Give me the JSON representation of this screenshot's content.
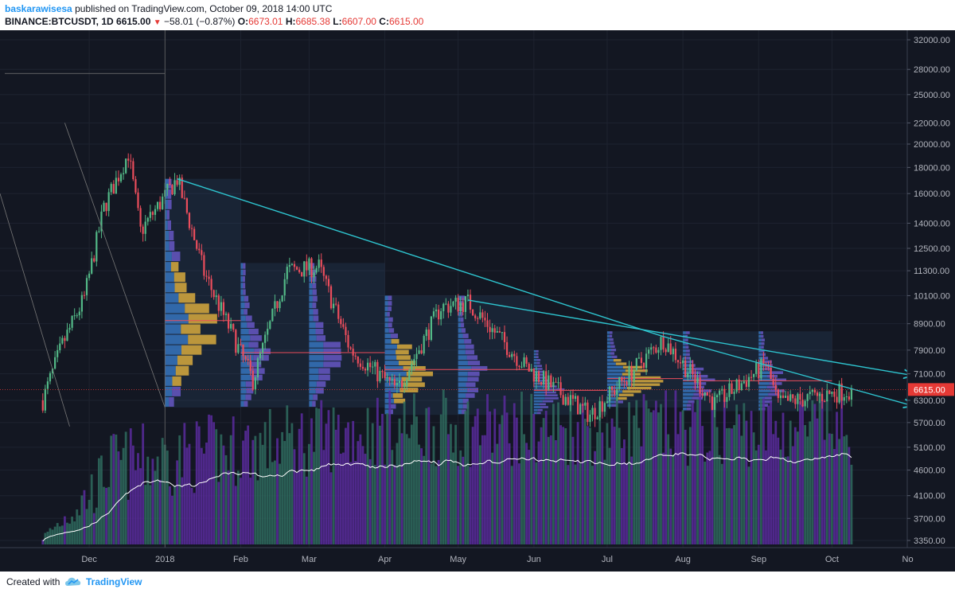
{
  "header": {
    "author": "baskarawisesa",
    "published_text": " published on TradingView.com, October 09, 2018 14:00 UTC",
    "symbol": "BINANCE:BTCUSDT, 1D",
    "last": "6615.00",
    "change": "−58.01 (−0.87%)",
    "o_label": "O:",
    "o_val": "6673.01",
    "h_label": "H:",
    "h_val": "6685.38",
    "l_label": "L:",
    "l_val": "6607.00",
    "c_label": "C:",
    "c_val": "6615.00"
  },
  "footer": {
    "created_with": "Created with",
    "brand": "TradingView"
  },
  "colors": {
    "background": "#131722",
    "up": "#53b987",
    "down": "#eb4d5c",
    "trendline": "#2ec4cf",
    "volume_purple": "#5b2c9e",
    "volume_green": "#2f6b5e",
    "vp_yellow": "#e3b33e",
    "vp_blue": "#3a7fd0",
    "price_label": "#e53935"
  },
  "chart_data": {
    "type": "candlestick",
    "price_scale": "log",
    "price_axis_ticks": [
      "32000.00",
      "28000.00",
      "25000.00",
      "22000.00",
      "20000.00",
      "18000.00",
      "16000.00",
      "14000.00",
      "12500.00",
      "11300.00",
      "10100.00",
      "8900.00",
      "7900.00",
      "7100.00",
      "6300.00",
      "5700.00",
      "5100.00",
      "4600.00",
      "4100.00",
      "3700.00",
      "3350.00"
    ],
    "time_axis_ticks": [
      "Dec",
      "2018",
      "Feb",
      "Mar",
      "Apr",
      "May",
      "Jun",
      "Jul",
      "Aug",
      "Sep",
      "Oct",
      "No"
    ],
    "last_price_label": "6615.00",
    "price_keypoints": [
      {
        "date": "2017-11-12",
        "close": 6300
      },
      {
        "date": "2017-11-20",
        "close": 8100
      },
      {
        "date": "2017-11-29",
        "close": 10000
      },
      {
        "date": "2017-12-07",
        "close": 15000
      },
      {
        "date": "2017-12-17",
        "close": 19200
      },
      {
        "date": "2017-12-22",
        "close": 13500
      },
      {
        "date": "2018-01-06",
        "close": 17100
      },
      {
        "date": "2018-01-17",
        "close": 11200
      },
      {
        "date": "2018-02-06",
        "close": 6900
      },
      {
        "date": "2018-02-20",
        "close": 11300
      },
      {
        "date": "2018-03-05",
        "close": 11500
      },
      {
        "date": "2018-03-18",
        "close": 7900
      },
      {
        "date": "2018-04-06",
        "close": 6600
      },
      {
        "date": "2018-04-24",
        "close": 9600
      },
      {
        "date": "2018-05-05",
        "close": 9800
      },
      {
        "date": "2018-05-29",
        "close": 7300
      },
      {
        "date": "2018-06-24",
        "close": 5900
      },
      {
        "date": "2018-07-24",
        "close": 8300
      },
      {
        "date": "2018-08-14",
        "close": 6200
      },
      {
        "date": "2018-09-04",
        "close": 7400
      },
      {
        "date": "2018-09-09",
        "close": 6200
      },
      {
        "date": "2018-10-09",
        "close": 6615
      }
    ],
    "trendlines": [
      {
        "from": {
          "date": "2018-01-06",
          "price": 17100
        },
        "to": {
          "date": "2018-07-24",
          "price": 8400
        }
      },
      {
        "from": {
          "date": "2018-05-05",
          "price": 9900
        },
        "to": {
          "date": "2018-11-03",
          "price": 7050
        }
      },
      {
        "from": {
          "date": "2018-07-24",
          "price": 8400
        },
        "to": {
          "date": "2018-11-03",
          "price": 6150
        }
      }
    ],
    "volume_ma": true
  }
}
